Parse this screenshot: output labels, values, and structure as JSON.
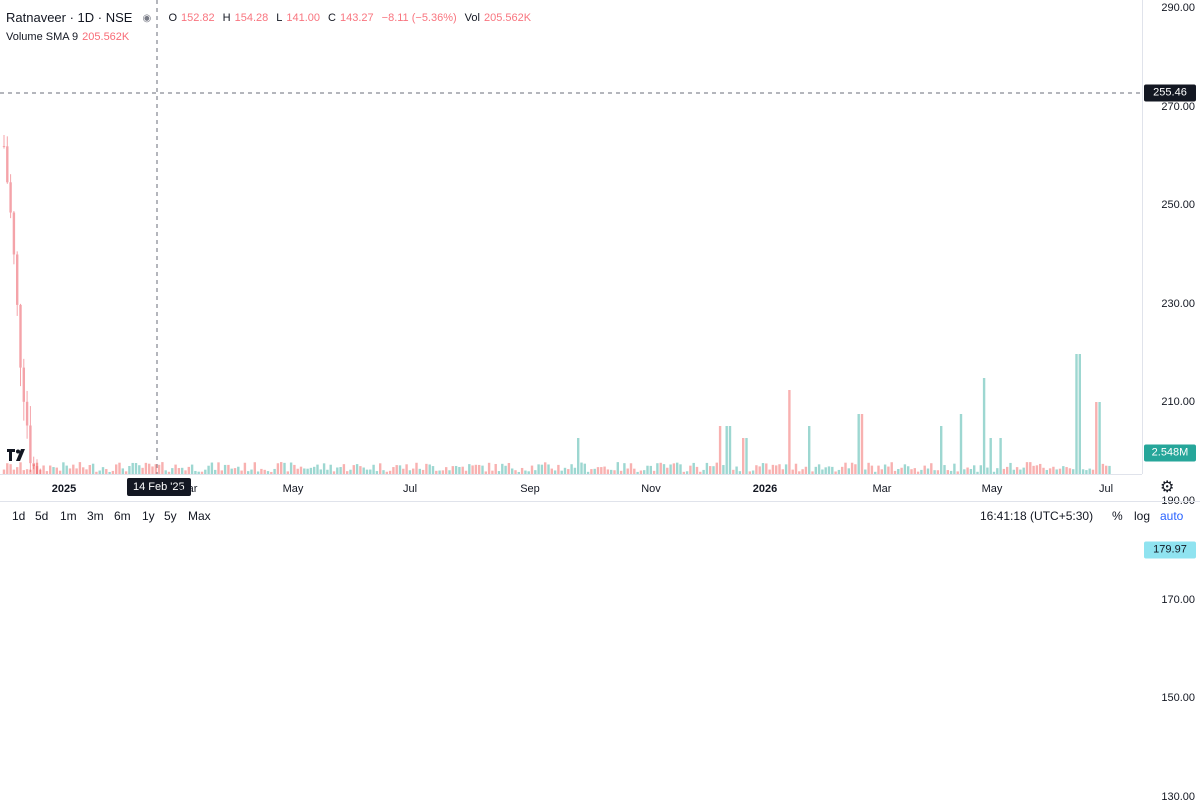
{
  "header": {
    "symbol": "Ratnaveer · 1D · NSE",
    "ohlc": [
      {
        "key": "O",
        "value": "152.82"
      },
      {
        "key": "H",
        "value": "154.28"
      },
      {
        "key": "L",
        "value": "141.00"
      },
      {
        "key": "C",
        "value": "143.27"
      },
      {
        "key": "",
        "value": "−8.11 (−5.36%)"
      },
      {
        "key": "Vol",
        "value": "205.562K"
      }
    ],
    "volume_label": "Volume SMA 9",
    "volume_value": "205.562K"
  },
  "price_axis": {
    "ticks": [
      "290.00",
      "270.00",
      "250.00",
      "230.00",
      "210.00",
      "190.00",
      "170.00",
      "150.00",
      "130.00"
    ],
    "crosshair_price": "255.46",
    "last_price": "179.97",
    "volume_tag": "2.548M"
  },
  "time_axis": {
    "labels": [
      {
        "text": "2025",
        "bold": true
      },
      {
        "text": "Mar",
        "bold": false
      },
      {
        "text": "May",
        "bold": false
      },
      {
        "text": "Jul",
        "bold": false
      },
      {
        "text": "Sep",
        "bold": false
      },
      {
        "text": "Nov",
        "bold": false
      },
      {
        "text": "2026",
        "bold": true
      },
      {
        "text": "Mar",
        "bold": false
      },
      {
        "text": "May",
        "bold": false
      },
      {
        "text": "Jul",
        "bold": false
      }
    ],
    "crosshair_date": "14 Feb '25"
  },
  "bottom_bar": {
    "ranges": [
      "1d",
      "5d",
      "1m",
      "3m",
      "6m",
      "1y",
      "5y",
      "Max"
    ],
    "clock": "16:41:18 (UTC+5:30)",
    "percent": "%",
    "log": "log",
    "auto": "auto"
  },
  "colors": {
    "up": "#26a69a",
    "down": "#ef5350",
    "up_light": "#8fd3c9",
    "down_light": "#f4a3a9",
    "last_price": "#8fe3f0"
  }
}
